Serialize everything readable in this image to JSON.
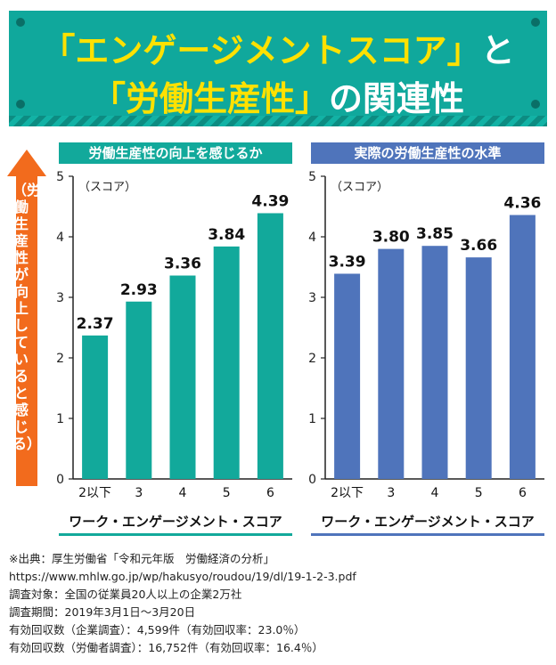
{
  "banner": {
    "line1_highlight": "「エンゲージメントスコア」",
    "line1_rest": "と",
    "line2_highlight": "「労働生産性」",
    "line2_rest": "の関連性"
  },
  "arrow_label": "（労働生産性が向上していると感じる）",
  "colors": {
    "banner": "#10a89c",
    "left_series": "#12a99b",
    "right_series": "#4f74bb",
    "arrow": "#f26b1d",
    "title_highlight": "#ffe100"
  },
  "chart_data": [
    {
      "type": "bar",
      "title": "労働生産性の向上を感じるか",
      "ylabel": "（スコア）",
      "xlabel": "ワーク・エンゲージメント・スコア",
      "categories": [
        "2以下",
        "3",
        "4",
        "5",
        "6"
      ],
      "values": [
        2.37,
        2.93,
        3.36,
        3.84,
        4.39
      ],
      "value_labels": [
        "2.37",
        "2.93",
        "3.36",
        "3.84",
        "4.39"
      ],
      "ylim": [
        0,
        5
      ],
      "yticks": [
        "0",
        "1",
        "2",
        "3",
        "4",
        "5"
      ],
      "grid": false,
      "color": "#12a99b"
    },
    {
      "type": "bar",
      "title": "実際の労働生産性の水準",
      "ylabel": "（スコア）",
      "xlabel": "ワーク・エンゲージメント・スコア",
      "categories": [
        "2以下",
        "3",
        "4",
        "5",
        "6"
      ],
      "values": [
        3.39,
        3.8,
        3.85,
        3.66,
        4.36
      ],
      "value_labels": [
        "3.39",
        "3.80",
        "3.85",
        "3.66",
        "4.36"
      ],
      "ylim": [
        0,
        5
      ],
      "yticks": [
        "0",
        "1",
        "2",
        "3",
        "4",
        "5"
      ],
      "grid": false,
      "color": "#4f74bb"
    }
  ],
  "notes": [
    "※出典：厚生労働省「令和元年版　労働経済の分析」",
    "https://www.mhlw.go.jp/wp/hakusyo/roudou/19/dl/19-1-2-3.pdf",
    "調査対象：全国の従業員20人以上の企業2万社",
    "調査期間：2019年3月1日～3月20日",
    "有効回収数（企業調査）：4,599件（有効回収率：23.0％）",
    "有効回収数（労働者調査）：16,752件（有効回収率：16.4％）"
  ]
}
